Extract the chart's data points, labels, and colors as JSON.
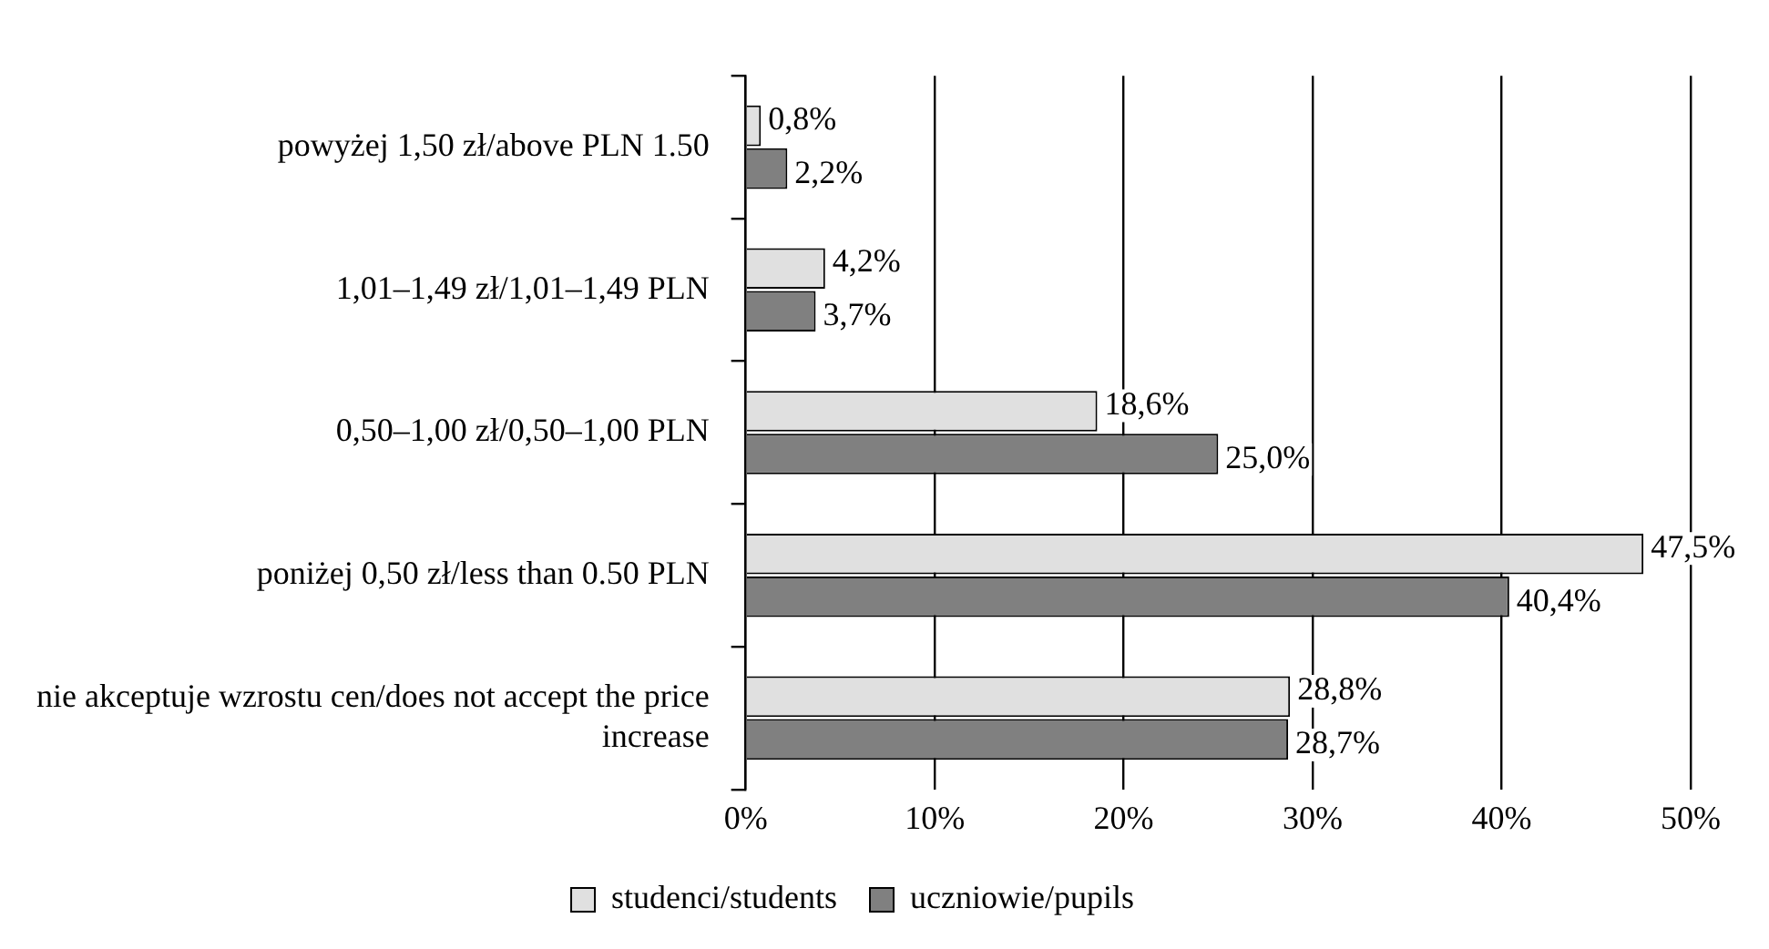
{
  "chart_data": {
    "type": "bar",
    "orientation": "horizontal",
    "categories": [
      "powyżej 1,50 zł/above PLN 1.50",
      "1,01–1,49 zł/1,01–1,49 PLN",
      "0,50–1,00 zł/0,50–1,00 PLN",
      "poniżej 0,50 zł/less than 0.50 PLN",
      "nie akceptuje wzrostu cen/does not accept the price increase"
    ],
    "series": [
      {
        "name": "studenci/students",
        "color": "#e0e0e0",
        "values": [
          0.8,
          4.2,
          18.6,
          47.5,
          28.8
        ],
        "value_labels": [
          "0,8%",
          "4,2%",
          "18,6%",
          "47,5%",
          "28,8%"
        ]
      },
      {
        "name": "uczniowie/pupils",
        "color": "#808080",
        "values": [
          2.2,
          3.7,
          25.0,
          40.4,
          28.7
        ],
        "value_labels": [
          "2,2%",
          "3,7%",
          "25,0%",
          "40,4%",
          "28,7%"
        ]
      }
    ],
    "xlim": [
      0,
      50
    ],
    "xticks": [
      {
        "value": 0,
        "label": "0%"
      },
      {
        "value": 10,
        "label": "10%"
      },
      {
        "value": 20,
        "label": "20%"
      },
      {
        "value": 30,
        "label": "30%"
      },
      {
        "value": 40,
        "label": "40%"
      },
      {
        "value": 50,
        "label": "50%"
      }
    ],
    "grid": "x",
    "legend": "bottom"
  }
}
